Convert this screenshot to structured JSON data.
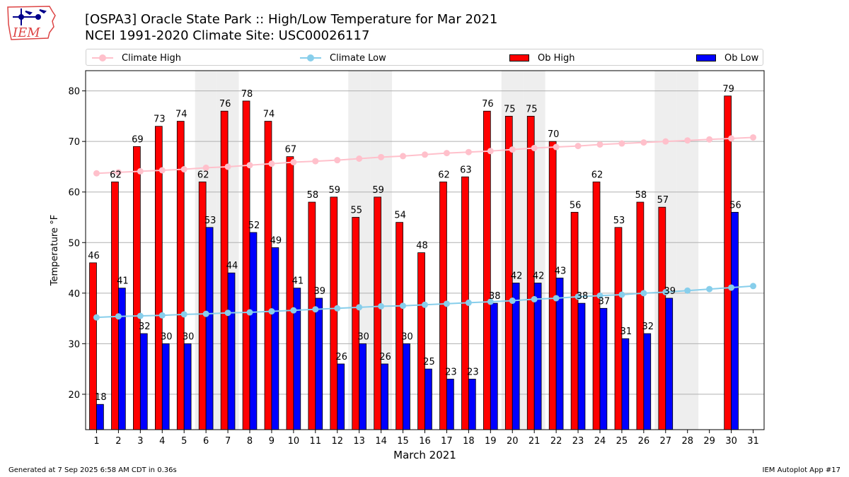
{
  "header": {
    "title_line1": "[OSPA3] Oracle State Park :: High/Low Temperature for Mar 2021",
    "title_line2": "NCEI 1991-2020 Climate Site: USC00026117"
  },
  "logo": {
    "text": "IEM",
    "icon": "iowa-map-weather-icon"
  },
  "legend": {
    "placement": "top",
    "climate_high": "Climate High",
    "climate_low": "Climate Low",
    "ob_high": "Ob High",
    "ob_low": "Ob Low"
  },
  "footer": {
    "generated": "Generated at 7 Sep 2025 6:58 AM CDT in 0.36s",
    "app": "IEM Autoplot App #17"
  },
  "colors": {
    "ob_high": "#ff0000",
    "ob_low": "#0000ff",
    "climate_high": "#ffc0cb",
    "climate_low": "#87ceeb",
    "weekend_shade": "#eeeeee",
    "grid": "#b0b0b0"
  },
  "chart_data": {
    "type": "bar",
    "xlabel": "March 2021",
    "ylabel": "Temperature °F",
    "ylim": [
      13,
      84
    ],
    "yticks": [
      20,
      30,
      40,
      50,
      60,
      70,
      80
    ],
    "grid": "horizontal",
    "categories": [
      1,
      2,
      3,
      4,
      5,
      6,
      7,
      8,
      9,
      10,
      11,
      12,
      13,
      14,
      15,
      16,
      17,
      18,
      19,
      20,
      21,
      22,
      23,
      24,
      25,
      26,
      27,
      28,
      29,
      30,
      31
    ],
    "weekend_days": [
      6,
      7,
      13,
      14,
      20,
      21,
      27,
      28
    ],
    "series": [
      {
        "name": "Ob High",
        "kind": "bar",
        "values": [
          46,
          62,
          69,
          73,
          74,
          62,
          76,
          78,
          74,
          67,
          58,
          59,
          55,
          59,
          54,
          48,
          62,
          63,
          76,
          75,
          75,
          70,
          56,
          62,
          53,
          58,
          57,
          null,
          null,
          79,
          null
        ]
      },
      {
        "name": "Ob Low",
        "kind": "bar",
        "values": [
          18,
          41,
          32,
          30,
          30,
          53,
          44,
          52,
          49,
          41,
          39,
          26,
          30,
          26,
          30,
          25,
          23,
          23,
          38,
          42,
          42,
          43,
          38,
          37,
          31,
          32,
          39,
          null,
          null,
          56,
          null
        ]
      },
      {
        "name": "Climate High",
        "kind": "line",
        "values": [
          63.7,
          63.9,
          64.1,
          64.3,
          64.5,
          64.8,
          65.0,
          65.3,
          65.6,
          65.9,
          66.1,
          66.3,
          66.6,
          66.9,
          67.1,
          67.4,
          67.7,
          67.9,
          68.1,
          68.4,
          68.7,
          68.9,
          69.1,
          69.4,
          69.6,
          69.8,
          70.0,
          70.2,
          70.4,
          70.6,
          70.8
        ]
      },
      {
        "name": "Climate Low",
        "kind": "line",
        "values": [
          35.2,
          35.4,
          35.5,
          35.6,
          35.8,
          35.9,
          36.1,
          36.2,
          36.4,
          36.6,
          36.8,
          37.0,
          37.2,
          37.4,
          37.5,
          37.7,
          37.9,
          38.1,
          38.3,
          38.5,
          38.8,
          39.0,
          39.3,
          39.5,
          39.7,
          40.0,
          40.2,
          40.5,
          40.8,
          41.1,
          41.4
        ]
      }
    ]
  }
}
